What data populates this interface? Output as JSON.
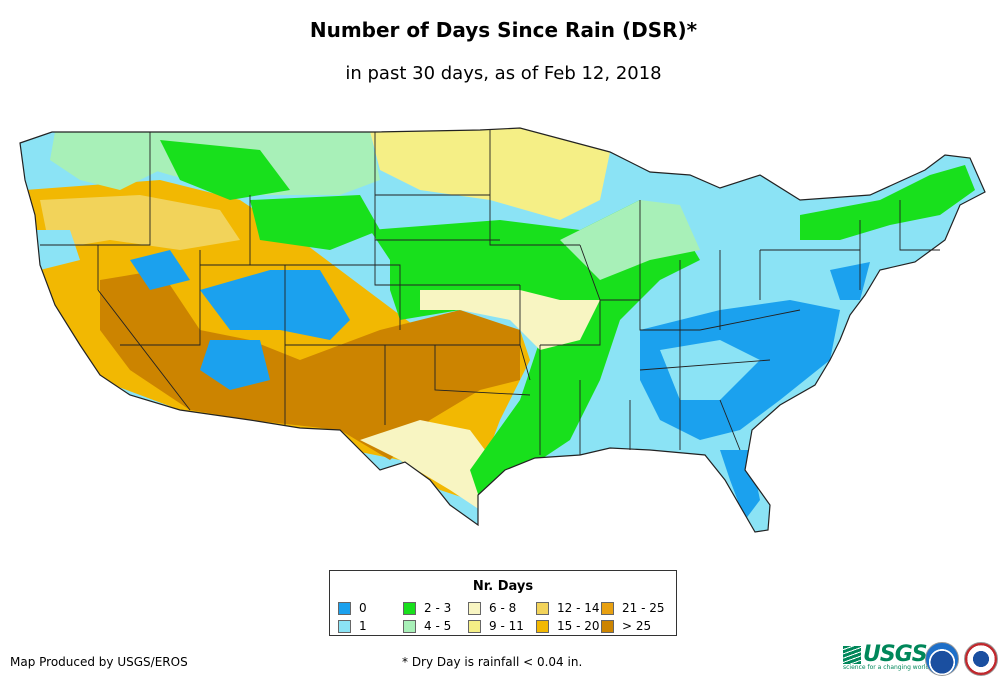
{
  "title": "Number of Days Since Rain (DSR)*",
  "subtitle": "in past 30 days, as of Feb 12, 2018",
  "legend": {
    "title": "Nr. Days",
    "items": [
      {
        "label": "0",
        "color": "#1ba1ee"
      },
      {
        "label": "1",
        "color": "#8be3f5"
      },
      {
        "label": "2 - 3",
        "color": "#18e01c"
      },
      {
        "label": "4 - 5",
        "color": "#a8f0b8"
      },
      {
        "label": "6 - 8",
        "color": "#f8f5c2"
      },
      {
        "label": "9 - 11",
        "color": "#f5ef86"
      },
      {
        "label": "12 - 14",
        "color": "#f2d35a"
      },
      {
        "label": "15 - 20",
        "color": "#f2b802"
      },
      {
        "label": "21 - 25",
        "color": "#e8a010"
      },
      {
        "label": "> 25",
        "color": "#cc8400"
      }
    ]
  },
  "footer": {
    "credit": "Map Produced by USGS/EROS",
    "note": "* Dry Day is rainfall < 0.04 in."
  },
  "logos": {
    "usgs_text": "USGS",
    "usgs_tagline": "science for a changing world"
  }
}
